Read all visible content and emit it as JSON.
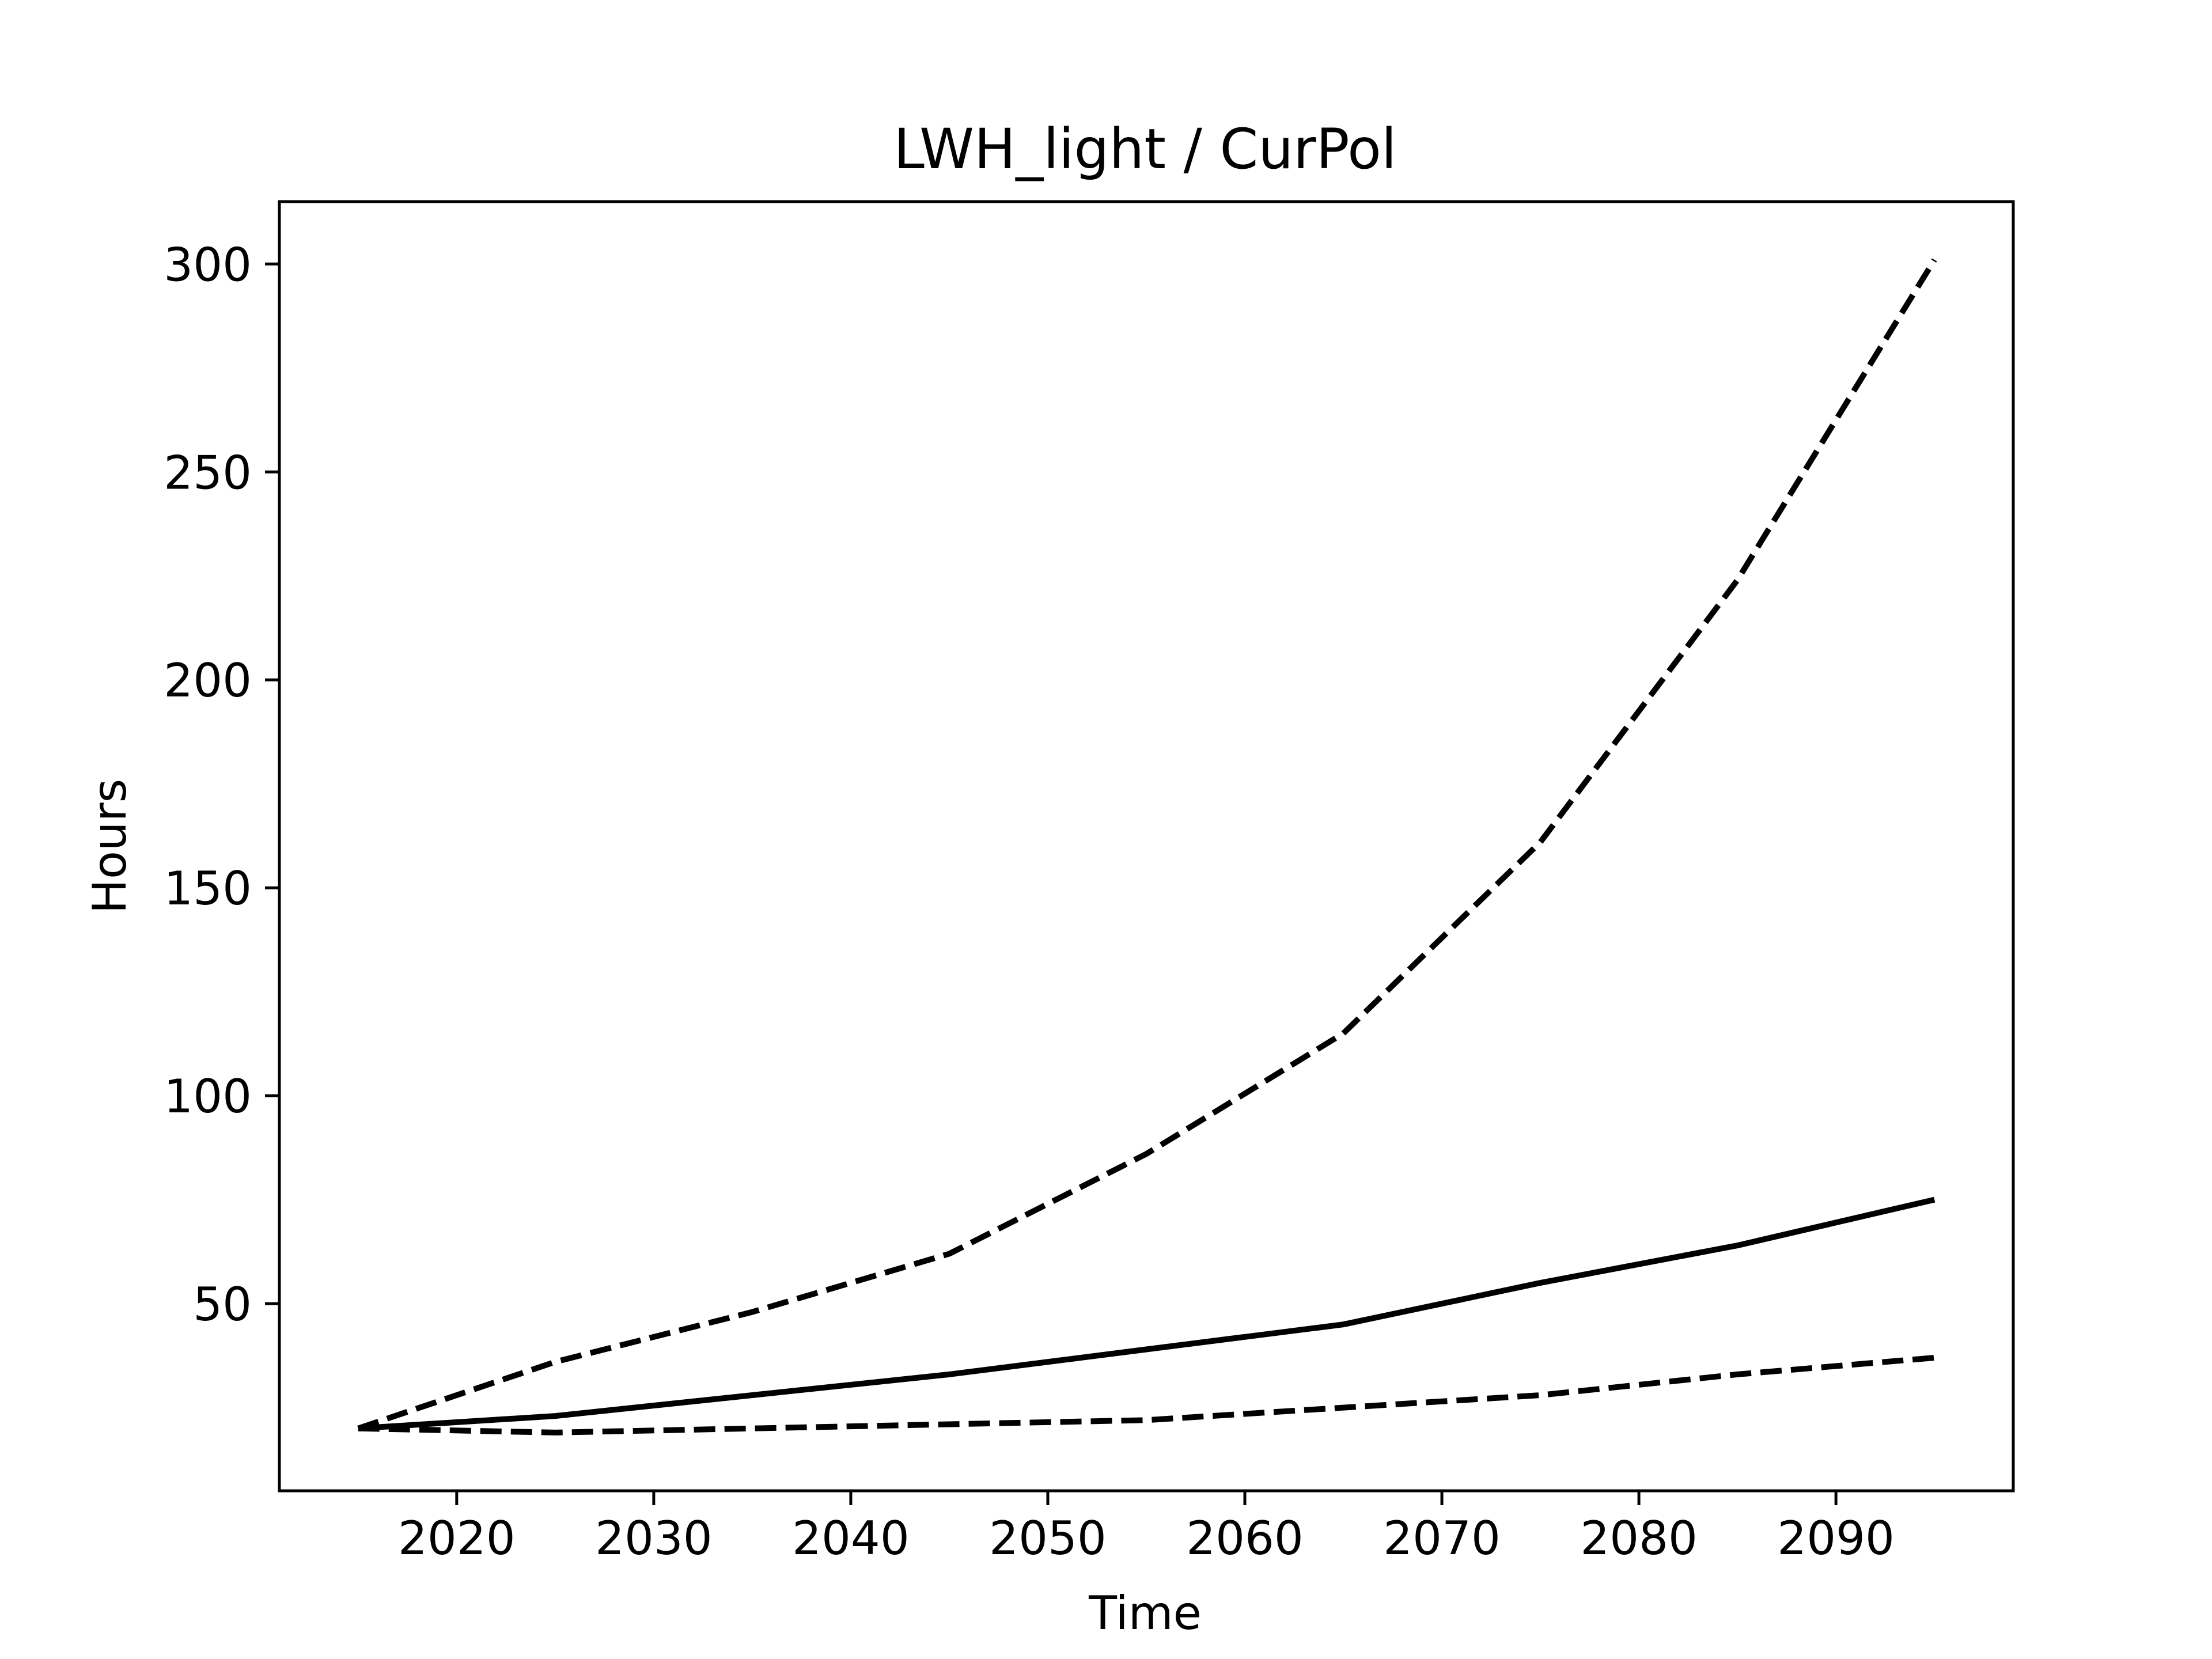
{
  "chart_data": {
    "type": "line",
    "title": "LWH_light / CurPol",
    "xlabel": "Time",
    "ylabel": "Hours",
    "xlim": [
      2011,
      2099
    ],
    "ylim": [
      5,
      315
    ],
    "xticks": [
      2020,
      2030,
      2040,
      2050,
      2060,
      2070,
      2080,
      2090
    ],
    "yticks": [
      50,
      100,
      150,
      200,
      250,
      300
    ],
    "grid": false,
    "legend": "none",
    "x": [
      2015,
      2025,
      2035,
      2045,
      2055,
      2065,
      2075,
      2085,
      2095
    ],
    "series": [
      {
        "style": "dashed",
        "color": "#000000",
        "values": [
          20,
          36,
          48,
          62,
          86,
          115,
          161,
          224,
          301
        ]
      },
      {
        "style": "solid",
        "color": "#000000",
        "values": [
          20,
          23,
          28,
          33,
          39,
          45,
          55,
          64,
          75
        ]
      },
      {
        "style": "dashed",
        "color": "#000000",
        "values": [
          20,
          19,
          20,
          21,
          22,
          25,
          28,
          33,
          37
        ]
      }
    ]
  }
}
